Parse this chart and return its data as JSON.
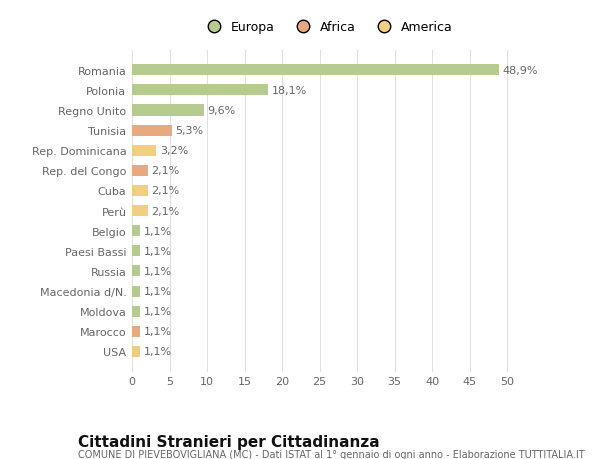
{
  "categories": [
    "Romania",
    "Polonia",
    "Regno Unito",
    "Tunisia",
    "Rep. Dominicana",
    "Rep. del Congo",
    "Cuba",
    "Perù",
    "Belgio",
    "Paesi Bassi",
    "Russia",
    "Macedonia d/N.",
    "Moldova",
    "Marocco",
    "USA"
  ],
  "values": [
    48.9,
    18.1,
    9.6,
    5.3,
    3.2,
    2.1,
    2.1,
    2.1,
    1.1,
    1.1,
    1.1,
    1.1,
    1.1,
    1.1,
    1.1
  ],
  "labels": [
    "48,9%",
    "18,1%",
    "9,6%",
    "5,3%",
    "3,2%",
    "2,1%",
    "2,1%",
    "2,1%",
    "1,1%",
    "1,1%",
    "1,1%",
    "1,1%",
    "1,1%",
    "1,1%",
    "1,1%"
  ],
  "continents": [
    "Europa",
    "Europa",
    "Europa",
    "Africa",
    "America",
    "Africa",
    "America",
    "America",
    "Europa",
    "Europa",
    "Europa",
    "Europa",
    "Europa",
    "Africa",
    "America"
  ],
  "colors": {
    "Europa": "#b5cc8e",
    "Africa": "#e8a97e",
    "America": "#f0d080"
  },
  "xlim": [
    0,
    52
  ],
  "xticks": [
    0,
    5,
    10,
    15,
    20,
    25,
    30,
    35,
    40,
    45,
    50
  ],
  "title": "Cittadini Stranieri per Cittadinanza",
  "subtitle": "COMUNE DI PIEVEBOVIGLIANA (MC) - Dati ISTAT al 1° gennaio di ogni anno - Elaborazione TUTTITALIA.IT",
  "bg_color": "#ffffff",
  "grid_color": "#e0e0e0",
  "bar_height": 0.55,
  "label_fontsize": 8,
  "ytick_fontsize": 8,
  "xtick_fontsize": 8,
  "title_fontsize": 11,
  "subtitle_fontsize": 7,
  "legend_labels": [
    "Europa",
    "Africa",
    "America"
  ],
  "legend_colors": [
    "#b5cc8e",
    "#e8a97e",
    "#f0d080"
  ]
}
